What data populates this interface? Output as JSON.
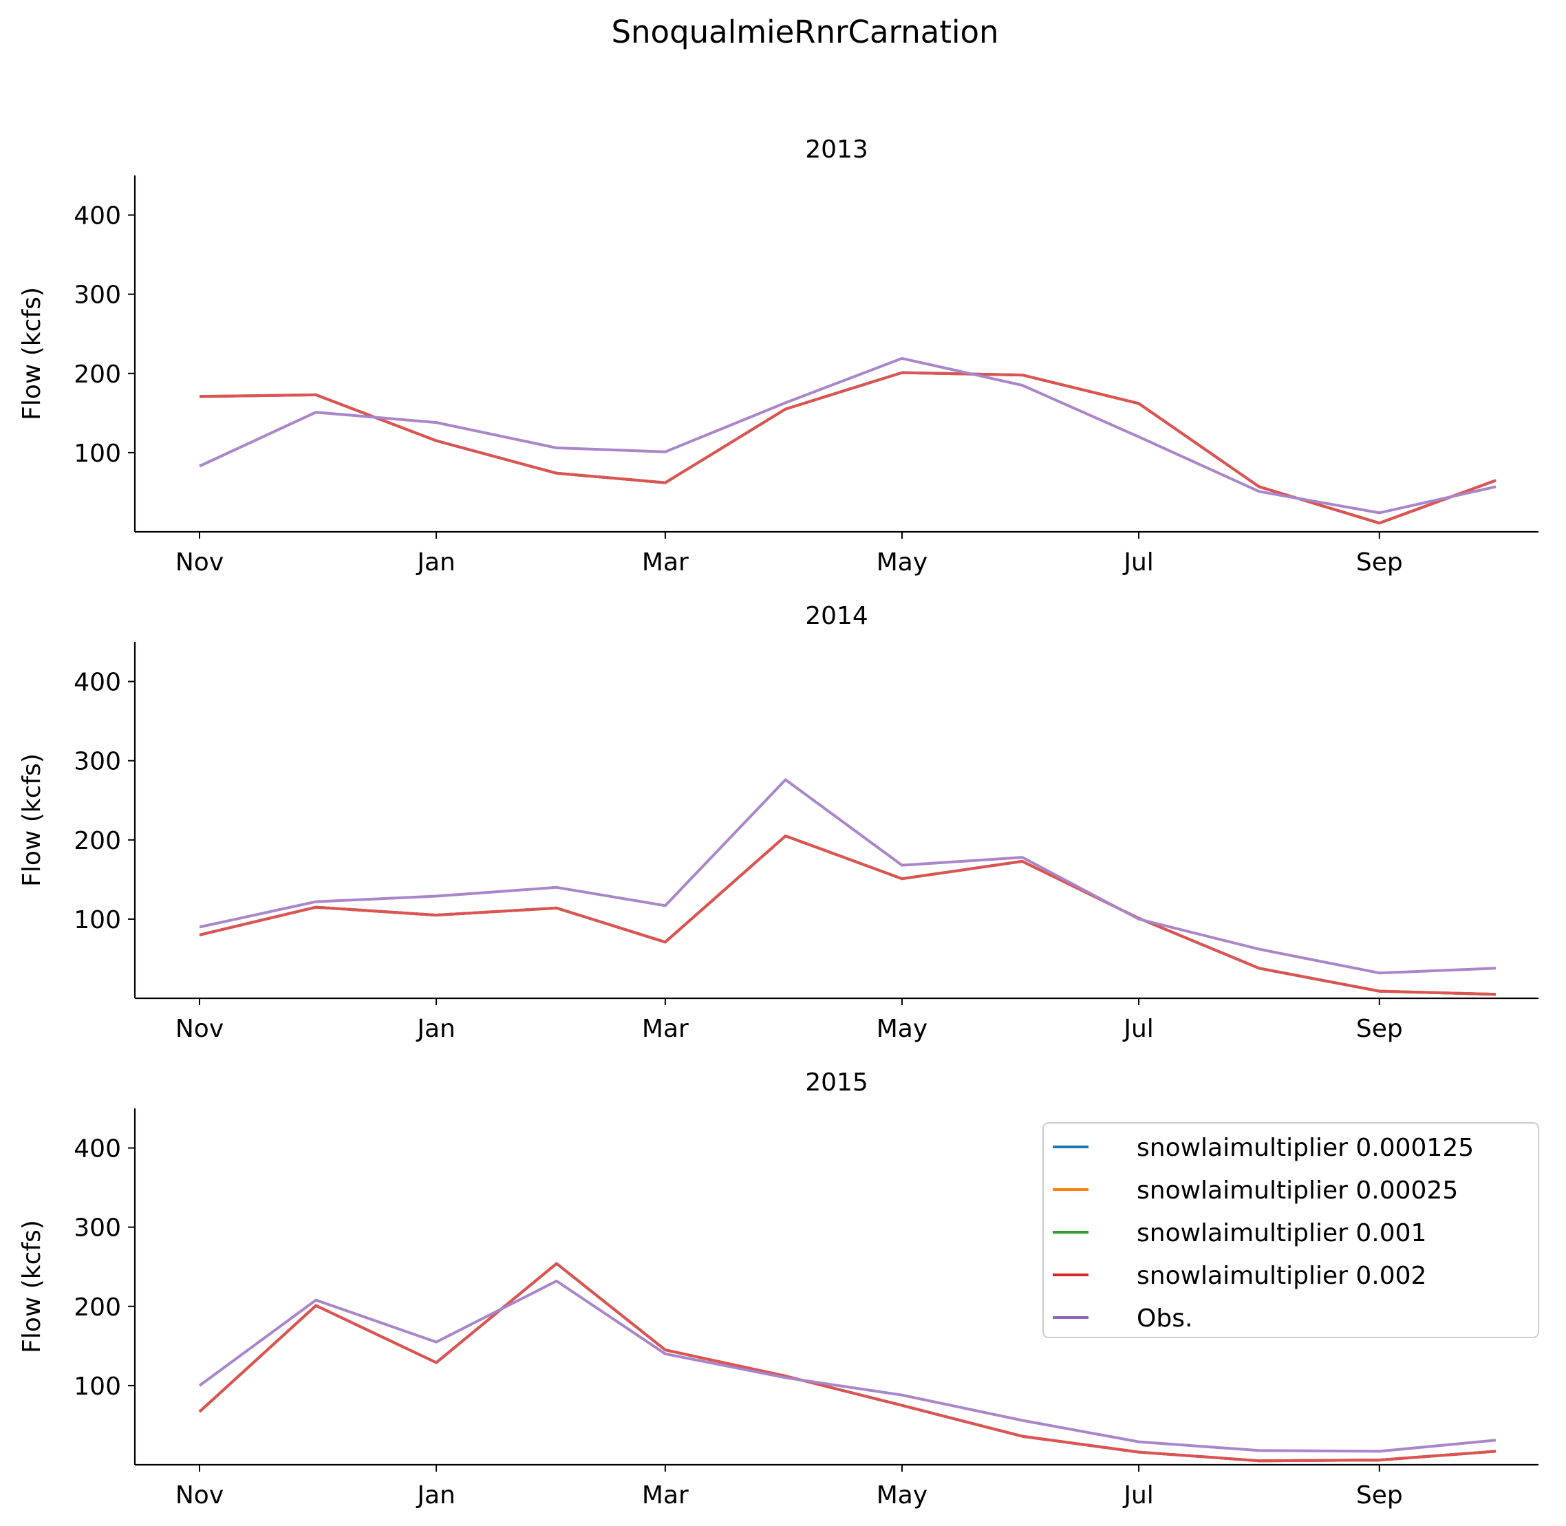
{
  "figure_title": "SnoqualmieRnrCarnation",
  "colors": {
    "snowlaimultiplier 0.000125": "#1f77b4",
    "snowlaimultiplier 0.00025": "#ff7f0e",
    "snowlaimultiplier 0.001": "#2ca02c",
    "snowlaimultiplier 0.002": "#d62728",
    "Obs.": "#9467bd"
  },
  "legend": {
    "placement": "upper right of 2015 panel",
    "entries": [
      "snowlaimultiplier 0.000125",
      "snowlaimultiplier 0.00025",
      "snowlaimultiplier 0.001",
      "snowlaimultiplier 0.002",
      "Obs."
    ]
  },
  "chart_data": [
    {
      "type": "line",
      "title": "2013",
      "xlabel": "",
      "ylabel": "Flow (kcfs)",
      "x": [
        "2012-11-01",
        "2012-12-01",
        "2013-01-01",
        "2013-02-01",
        "2013-03-01",
        "2013-04-01",
        "2013-05-01",
        "2013-06-01",
        "2013-07-01",
        "2013-08-01",
        "2013-09-01",
        "2013-10-01"
      ],
      "xtick_labels": [
        "Nov",
        "Jan",
        "Mar",
        "May",
        "Jul",
        "Sep"
      ],
      "xticks": [
        "2012-11-01",
        "2013-01-01",
        "2013-03-01",
        "2013-05-01",
        "2013-07-01",
        "2013-09-01"
      ],
      "ylim": [
        0,
        450
      ],
      "yticks": [
        100,
        200,
        300,
        400
      ],
      "grid": false,
      "series": [
        {
          "name": "snowlaimultiplier 0.000125",
          "values": [
            171,
            173,
            115,
            74,
            62,
            155,
            201,
            198,
            162,
            57,
            11,
            65
          ]
        },
        {
          "name": "snowlaimultiplier 0.00025",
          "values": [
            171,
            173,
            115,
            74,
            62,
            155,
            201,
            198,
            162,
            57,
            11,
            65
          ]
        },
        {
          "name": "snowlaimultiplier 0.001",
          "values": [
            171,
            173,
            115,
            74,
            62,
            155,
            201,
            198,
            162,
            57,
            11,
            65
          ]
        },
        {
          "name": "snowlaimultiplier 0.002",
          "values": [
            171,
            173,
            115,
            74,
            62,
            155,
            201,
            198,
            162,
            57,
            11,
            65
          ]
        },
        {
          "name": "Obs.",
          "values": [
            83,
            151,
            138,
            106,
            101,
            163,
            219,
            185,
            120,
            51,
            24,
            57
          ]
        }
      ]
    },
    {
      "type": "line",
      "title": "2014",
      "xlabel": "",
      "ylabel": "Flow (kcfs)",
      "x": [
        "2013-11-01",
        "2013-12-01",
        "2014-01-01",
        "2014-02-01",
        "2014-03-01",
        "2014-04-01",
        "2014-05-01",
        "2014-06-01",
        "2014-07-01",
        "2014-08-01",
        "2014-09-01",
        "2014-10-01"
      ],
      "xtick_labels": [
        "Nov",
        "Jan",
        "Mar",
        "May",
        "Jul",
        "Sep"
      ],
      "xticks": [
        "2013-11-01",
        "2014-01-01",
        "2014-03-01",
        "2014-05-01",
        "2014-07-01",
        "2014-09-01"
      ],
      "ylim": [
        0,
        450
      ],
      "yticks": [
        100,
        200,
        300,
        400
      ],
      "grid": false,
      "series": [
        {
          "name": "snowlaimultiplier 0.000125",
          "values": [
            80,
            115,
            105,
            114,
            71,
            205,
            151,
            173,
            101,
            38,
            9,
            5
          ]
        },
        {
          "name": "snowlaimultiplier 0.00025",
          "values": [
            80,
            115,
            105,
            114,
            71,
            205,
            151,
            173,
            101,
            38,
            9,
            5
          ]
        },
        {
          "name": "snowlaimultiplier 0.001",
          "values": [
            80,
            115,
            105,
            114,
            71,
            205,
            151,
            173,
            101,
            38,
            9,
            5
          ]
        },
        {
          "name": "snowlaimultiplier 0.002",
          "values": [
            80,
            115,
            105,
            114,
            71,
            205,
            151,
            173,
            101,
            38,
            9,
            5
          ]
        },
        {
          "name": "Obs.",
          "values": [
            90,
            122,
            129,
            140,
            117,
            276,
            168,
            178,
            100,
            62,
            32,
            38
          ]
        }
      ]
    },
    {
      "type": "line",
      "title": "2015",
      "xlabel": "",
      "ylabel": "Flow (kcfs)",
      "x": [
        "2014-11-01",
        "2014-12-01",
        "2015-01-01",
        "2015-02-01",
        "2015-03-01",
        "2015-04-01",
        "2015-05-01",
        "2015-06-01",
        "2015-07-01",
        "2015-08-01",
        "2015-09-01",
        "2015-10-01"
      ],
      "xtick_labels": [
        "Nov",
        "Jan",
        "Mar",
        "May",
        "Jul",
        "Sep"
      ],
      "xticks": [
        "2014-11-01",
        "2015-01-01",
        "2015-03-01",
        "2015-05-01",
        "2015-07-01",
        "2015-09-01"
      ],
      "ylim": [
        0,
        450
      ],
      "yticks": [
        100,
        200,
        300,
        400
      ],
      "grid": false,
      "series": [
        {
          "name": "snowlaimultiplier 0.000125",
          "values": [
            67,
            201,
            129,
            254,
            145,
            112,
            75,
            36,
            16,
            5,
            6,
            17
          ]
        },
        {
          "name": "snowlaimultiplier 0.00025",
          "values": [
            67,
            201,
            129,
            254,
            145,
            112,
            75,
            36,
            16,
            5,
            6,
            17
          ]
        },
        {
          "name": "snowlaimultiplier 0.001",
          "values": [
            67,
            201,
            129,
            254,
            145,
            112,
            75,
            36,
            16,
            5,
            6,
            17
          ]
        },
        {
          "name": "snowlaimultiplier 0.002",
          "values": [
            67,
            201,
            129,
            254,
            145,
            112,
            75,
            36,
            16,
            5,
            6,
            17
          ]
        },
        {
          "name": "Obs.",
          "values": [
            100,
            208,
            155,
            232,
            140,
            110,
            88,
            56,
            29,
            18,
            17,
            31
          ]
        }
      ]
    }
  ]
}
